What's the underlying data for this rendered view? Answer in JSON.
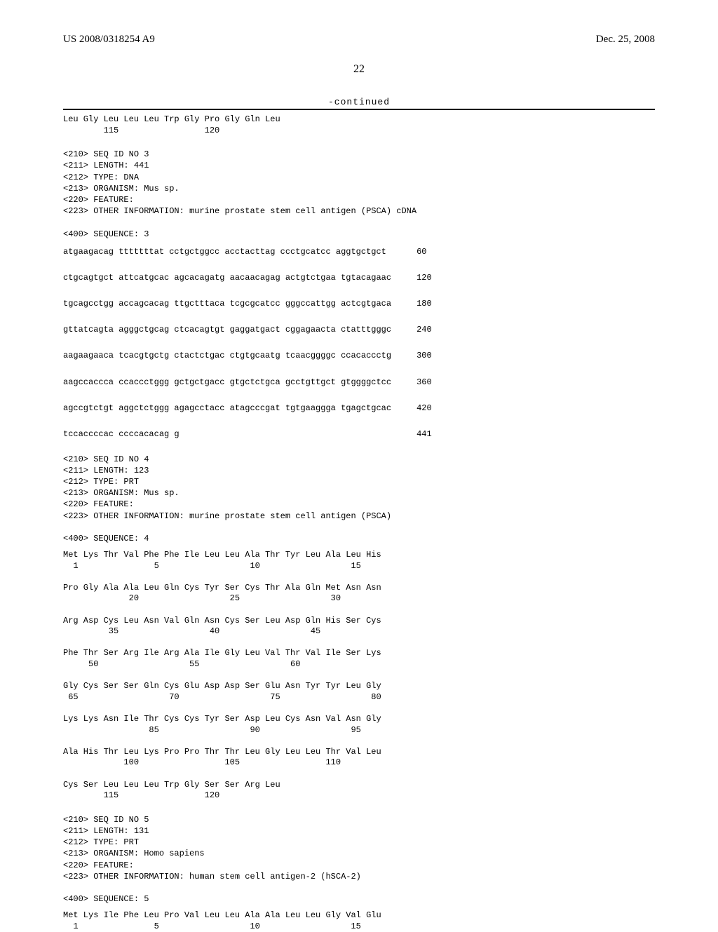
{
  "header": {
    "left": "US 2008/0318254 A9",
    "right": "Dec. 25, 2008",
    "page_number": "22",
    "continued": "-continued"
  },
  "seq2_tail": {
    "line1": "Leu Gly Leu Leu Leu Trp Gly Pro Gly Gln Leu",
    "line2": "        115                 120"
  },
  "seq3_meta": {
    "l1": "<210> SEQ ID NO 3",
    "l2": "<211> LENGTH: 441",
    "l3": "<212> TYPE: DNA",
    "l4": "<213> ORGANISM: Mus sp.",
    "l5": "<220> FEATURE:",
    "l6": "<223> OTHER INFORMATION: murine prostate stem cell antigen (PSCA) cDNA",
    "l7": "<400> SEQUENCE: 3"
  },
  "seq3_dna": {
    "r1": "atgaagacag tttttttat cctgctggcc acctacttag ccctgcatcc aggtgctgct      60",
    "r2": "ctgcagtgct attcatgcac agcacagatg aacaacagag actgtctgaa tgtacagaac     120",
    "r3": "tgcagcctgg accagcacag ttgctttaca tcgcgcatcc gggccattgg actcgtgaca     180",
    "r4": "gttatcagta agggctgcag ctcacagtgt gaggatgact cggagaacta ctatttgggc     240",
    "r5": "aagaagaaca tcacgtgctg ctactctgac ctgtgcaatg tcaacggggc ccacaccctg     300",
    "r6": "aagccaccca ccaccctggg gctgctgacc gtgctctgca gcctgttgct gtggggctcc     360",
    "r7": "agccgtctgt aggctctggg agagcctacc atagcccgat tgtgaaggga tgagctgcac     420",
    "r8": "tccaccccac ccccacacag g                                               441"
  },
  "seq4_meta": {
    "l1": "<210> SEQ ID NO 4",
    "l2": "<211> LENGTH: 123",
    "l3": "<212> TYPE: PRT",
    "l4": "<213> ORGANISM: Mus sp.",
    "l5": "<220> FEATURE:",
    "l6": "<223> OTHER INFORMATION: murine prostate stem cell antigen (PSCA)",
    "l7": "<400> SEQUENCE: 4"
  },
  "seq4_protein": {
    "p1a": "Met Lys Thr Val Phe Phe Ile Leu Leu Ala Thr Tyr Leu Ala Leu His",
    "p1b": "  1               5                  10                  15",
    "p2a": "Pro Gly Ala Ala Leu Gln Cys Tyr Ser Cys Thr Ala Gln Met Asn Asn",
    "p2b": "             20                  25                  30",
    "p3a": "Arg Asp Cys Leu Asn Val Gln Asn Cys Ser Leu Asp Gln His Ser Cys",
    "p3b": "         35                  40                  45",
    "p4a": "Phe Thr Ser Arg Ile Arg Ala Ile Gly Leu Val Thr Val Ile Ser Lys",
    "p4b": "     50                  55                  60",
    "p5a": "Gly Cys Ser Ser Gln Cys Glu Asp Asp Ser Glu Asn Tyr Tyr Leu Gly",
    "p5b": " 65                  70                  75                  80",
    "p6a": "Lys Lys Asn Ile Thr Cys Cys Tyr Ser Asp Leu Cys Asn Val Asn Gly",
    "p6b": "                 85                  90                  95",
    "p7a": "Ala His Thr Leu Lys Pro Pro Thr Thr Leu Gly Leu Leu Thr Val Leu",
    "p7b": "            100                 105                 110",
    "p8a": "Cys Ser Leu Leu Leu Trp Gly Ser Ser Arg Leu",
    "p8b": "        115                 120"
  },
  "seq5_meta": {
    "l1": "<210> SEQ ID NO 5",
    "l2": "<211> LENGTH: 131",
    "l3": "<212> TYPE: PRT",
    "l4": "<213> ORGANISM: Homo sapiens",
    "l5": "<220> FEATURE:",
    "l6": "<223> OTHER INFORMATION: human stem cell antigen-2 (hSCA-2)",
    "l7": "<400> SEQUENCE: 5"
  },
  "seq5_protein": {
    "p1a": "Met Lys Ile Phe Leu Pro Val Leu Leu Ala Ala Leu Leu Gly Val Glu",
    "p1b": "  1               5                  10                  15"
  }
}
